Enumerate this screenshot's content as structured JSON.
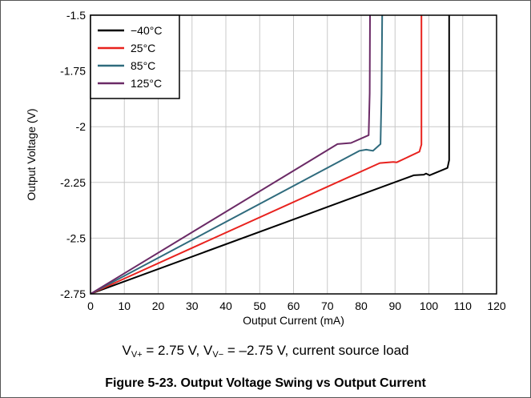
{
  "chart_data": {
    "type": "line",
    "xlabel": "Output Current (mA)",
    "ylabel": "Output Voltage (V)",
    "xlim": [
      0,
      120
    ],
    "ylim": [
      -2.75,
      -1.5
    ],
    "xticks": [
      "0",
      "10",
      "20",
      "30",
      "40",
      "50",
      "60",
      "70",
      "80",
      "90",
      "100",
      "110",
      "120"
    ],
    "yticks": [
      "-1.5",
      "-1.75",
      "-2",
      "-2.25",
      "-2.5",
      "-2.75"
    ],
    "grid": true,
    "legend_position": "top-left",
    "series": [
      {
        "name": "−40°C",
        "color": "#000000",
        "x": [
          0,
          95.5,
          98.5,
          99.2,
          100.2,
          105.5,
          106,
          106
        ],
        "y": [
          -2.75,
          -2.218,
          -2.215,
          -2.21,
          -2.218,
          -2.185,
          -2.15,
          -1.5
        ]
      },
      {
        "name": "25°C",
        "color": "#e8221e",
        "x": [
          0,
          85.5,
          89.5,
          90.5,
          97.2,
          97.8,
          97.8
        ],
        "y": [
          -2.75,
          -2.163,
          -2.158,
          -2.16,
          -2.112,
          -2.08,
          -1.5
        ]
      },
      {
        "name": "85°C",
        "color": "#2f6b7d",
        "x": [
          0,
          79.5,
          81.5,
          83.5,
          85.7,
          86,
          86.2
        ],
        "y": [
          -2.75,
          -2.108,
          -2.103,
          -2.108,
          -2.078,
          -1.85,
          -1.5
        ]
      },
      {
        "name": "125°C",
        "color": "#6b2a66",
        "x": [
          0,
          73,
          77,
          82.2,
          82.5,
          82.6
        ],
        "y": [
          -2.75,
          -2.078,
          -2.073,
          -2.038,
          -1.85,
          -1.5
        ]
      }
    ]
  },
  "conditions": {
    "v": "V",
    "vplus_sub": "V+",
    "vplus_value": " = 2.75 V, ",
    "v2": "V",
    "vminus_sub": "V−",
    "vminus_value": " = –2.75 V, current source load"
  },
  "caption": "Figure 5-23. Output Voltage Swing vs Output Current"
}
